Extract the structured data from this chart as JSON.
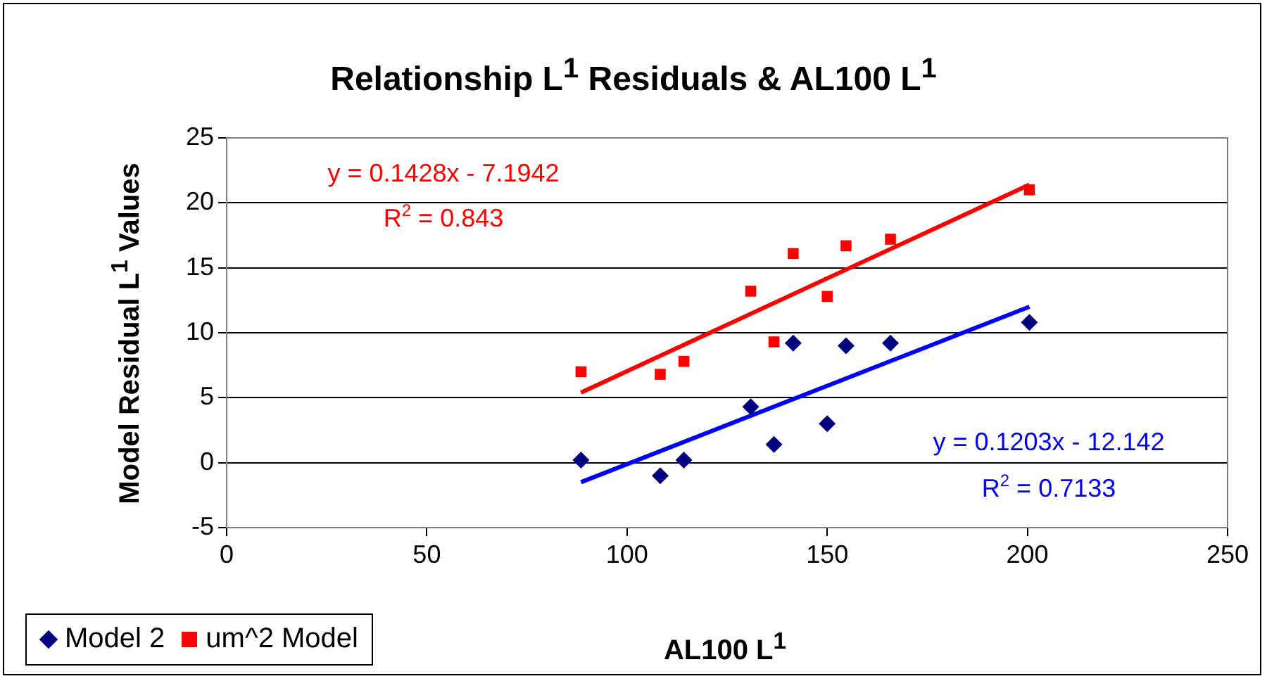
{
  "chart_data": {
    "type": "scatter",
    "title": "Relationship L$^{1}$ Residuals & AL100 L$^{1}$",
    "xlabel": "AL100 L$^{1}$",
    "ylabel": "Model Residual L$^{1}$ Values",
    "xlim": [
      0,
      250
    ],
    "xticks": [
      0,
      50,
      100,
      150,
      200,
      250
    ],
    "ylim": [
      -5,
      25
    ],
    "yticks": [
      -5,
      0,
      5,
      10,
      15,
      20,
      25
    ],
    "grid": "y",
    "legend": "bottom left",
    "series": [
      {
        "name": "Model 2",
        "color": "#000080",
        "marker": "diamond",
        "x": [
          88.5,
          108.3,
          114.2,
          130.9,
          136.7,
          141.5,
          150,
          154.7,
          165.8,
          200.5
        ],
        "values": [
          0.2,
          -1.0,
          0.2,
          4.3,
          1.4,
          9.2,
          3.0,
          9.0,
          9.2,
          10.8
        ]
      },
      {
        "name": "um^2 Model",
        "color": "#ff0000",
        "marker": "square",
        "x": [
          88.5,
          108.3,
          114.2,
          130.9,
          136.7,
          141.5,
          150,
          154.7,
          165.8,
          200.5
        ],
        "values": [
          7.0,
          6.8,
          7.8,
          13.2,
          9.3,
          16.1,
          12.8,
          16.7,
          17.2,
          21.0
        ]
      },
      {
        "type": "line",
        "color": "#0000ff",
        "marker": "none",
        "x": [
          88.5,
          200.5
        ],
        "values": [
          -1.5,
          12.0
        ]
      },
      {
        "type": "line",
        "color": "#ff0000",
        "marker": "none",
        "x": [
          88.5,
          200.5
        ],
        "values": [
          5.4,
          21.4
        ]
      }
    ],
    "annotations": [
      "y = 0.1428x - 7.1942",
      "R$^{2}$ = 0.843",
      "y = 0.1203x - 12.142",
      "R$^{2}$ = 0.7133"
    ]
  }
}
